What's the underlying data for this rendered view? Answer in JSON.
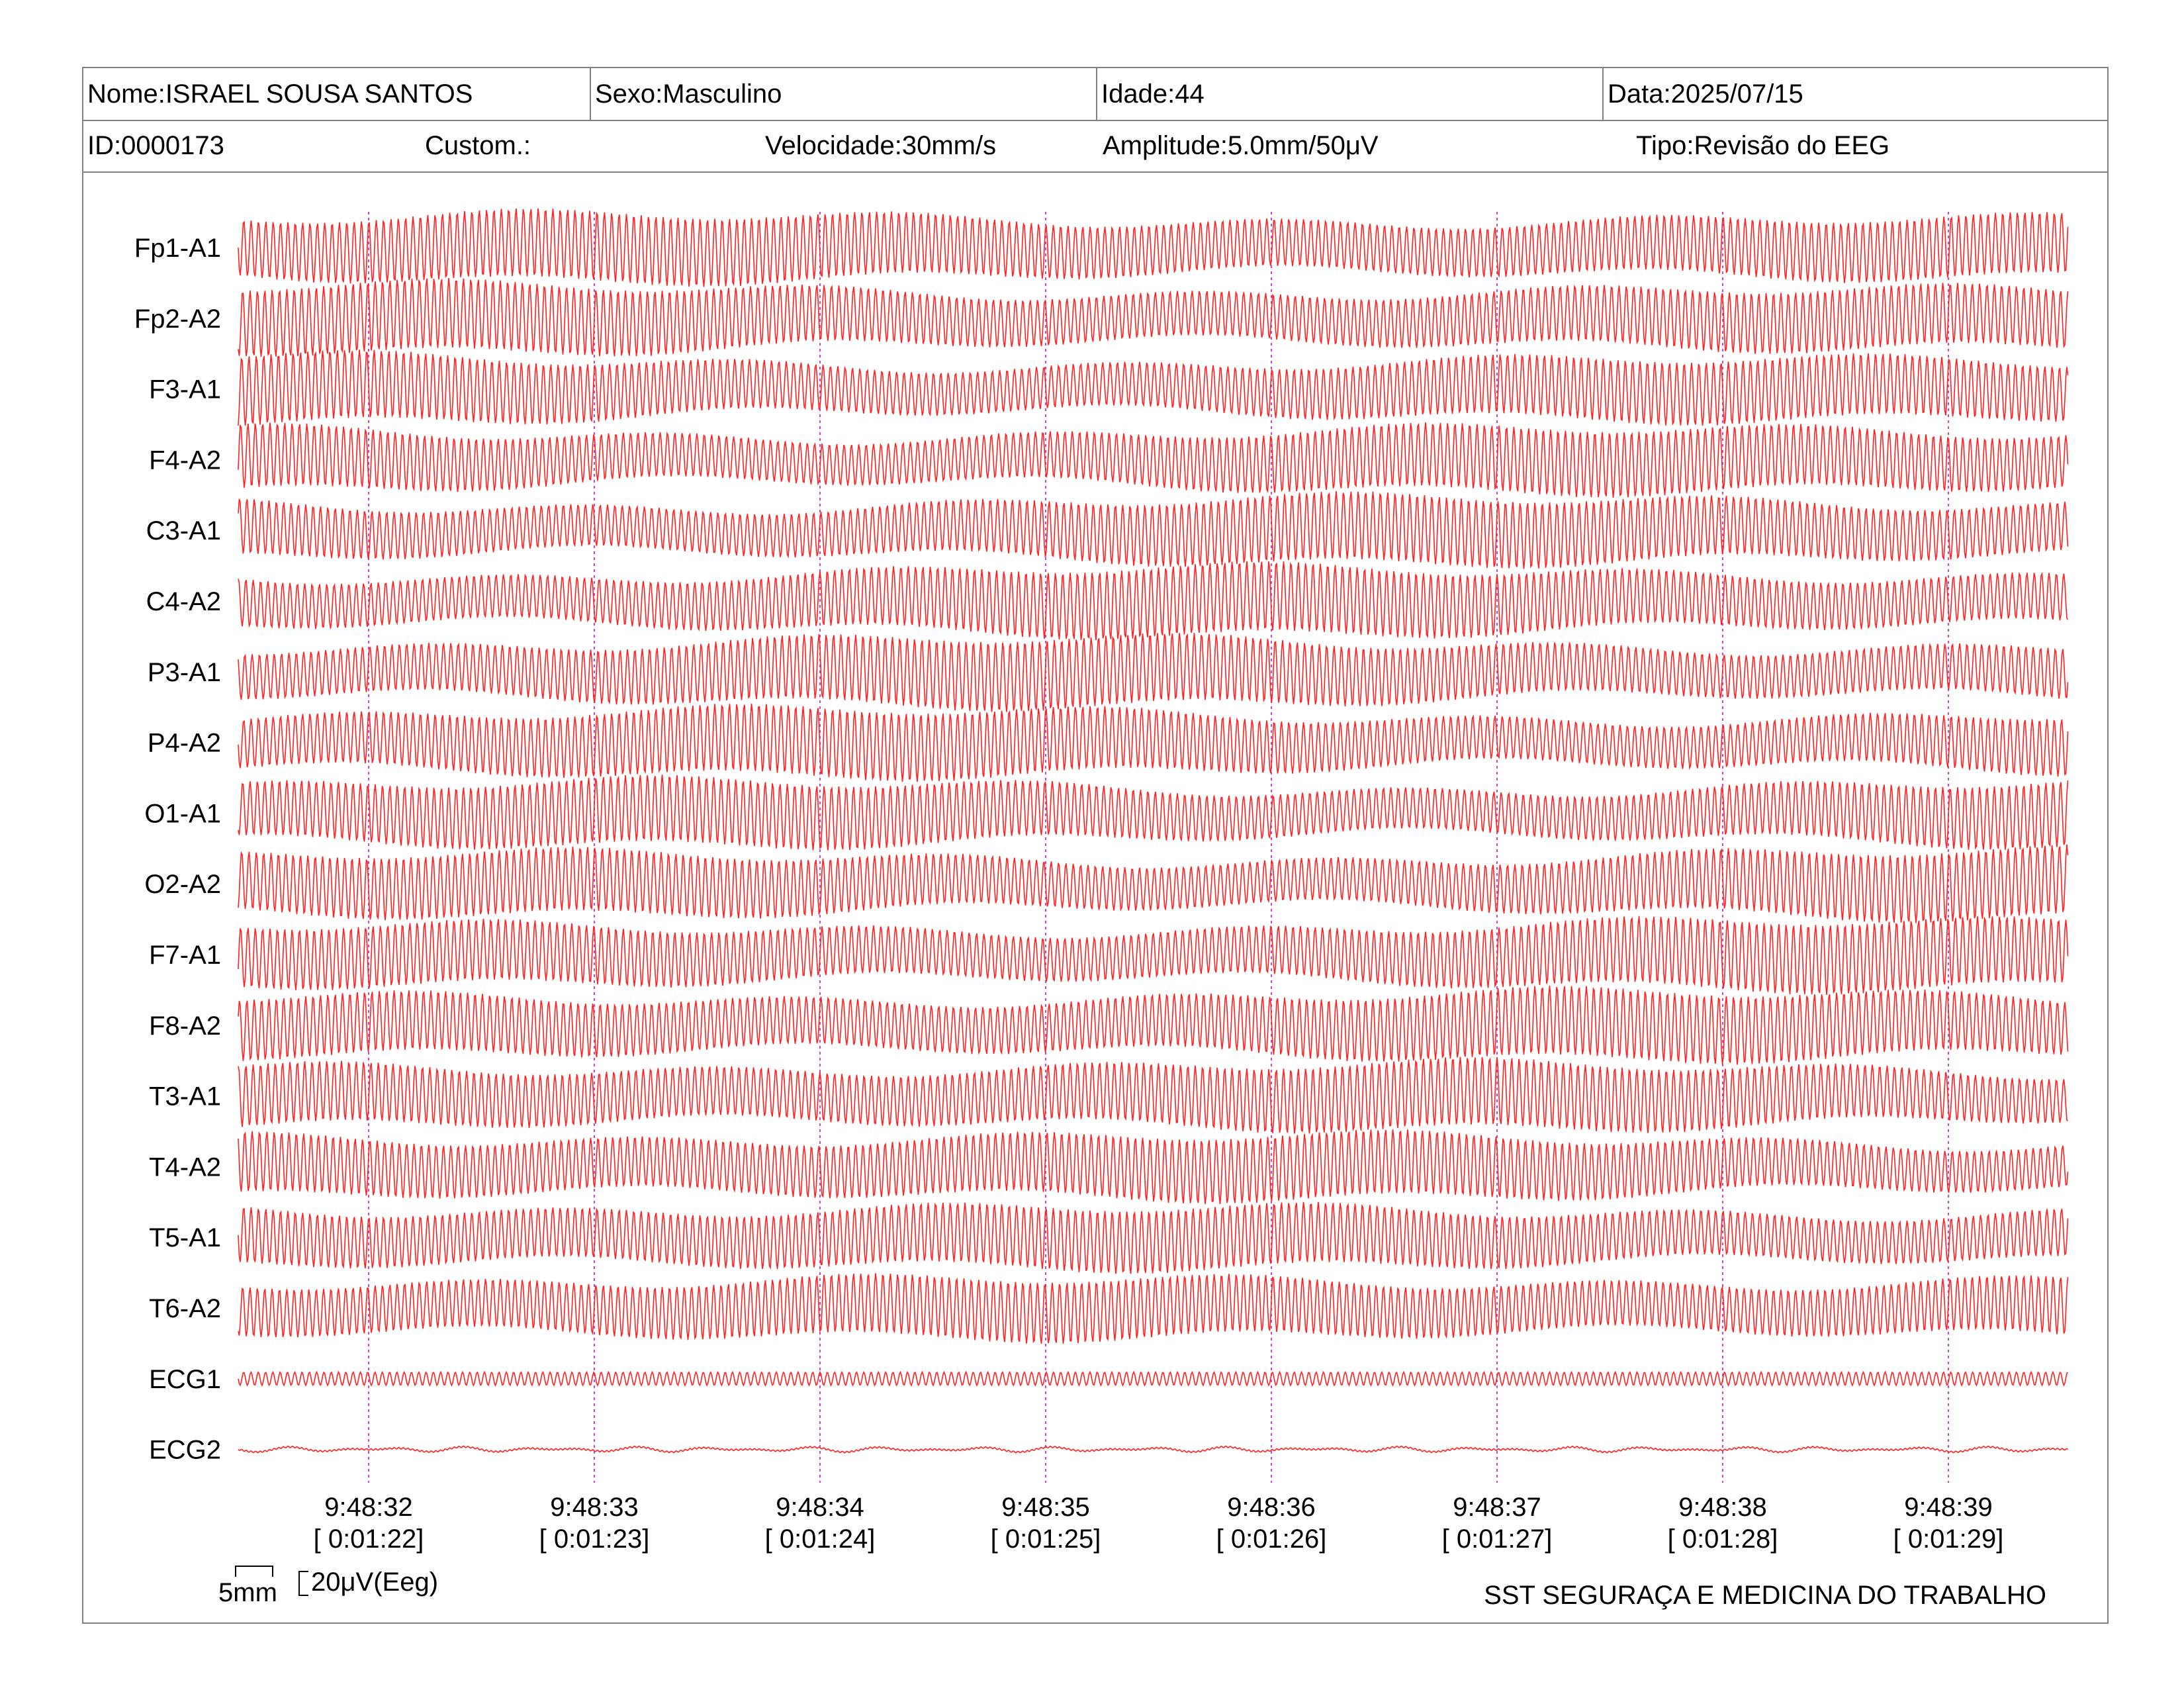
{
  "header": {
    "name": "Nome:ISRAEL SOUSA SANTOS",
    "sex": "Sexo:Masculino",
    "age": "Idade:44",
    "date": "Data:2025/07/15",
    "id": "ID:0000173",
    "custom": "Custom.:",
    "speed": "Velocidade:30mm/s",
    "amplitude": "Amplitude:5.0mm/50μV",
    "type": "Tipo:Revisão do EEG"
  },
  "scale": {
    "mm_label": "5mm",
    "uv_label": "20μV(Eeg)"
  },
  "footer": {
    "organization": "SST SEGURAÇA E MEDICINA DO TRABALHO"
  },
  "colors": {
    "trace": "#ff2020",
    "marker": "#cc44cc",
    "border": "#808080"
  },
  "chart_data": {
    "type": "line",
    "title": "",
    "channels": [
      "Fp1-A1",
      "Fp2-A2",
      "F3-A1",
      "F4-A2",
      "C3-A1",
      "C4-A2",
      "P3-A1",
      "P4-A2",
      "O1-A1",
      "O2-A2",
      "F7-A1",
      "F8-A2",
      "T3-A1",
      "T4-A2",
      "T5-A1",
      "T6-A2",
      "ECG1",
      "ECG2"
    ],
    "x_ticks": [
      {
        "time": "9:48:32",
        "elapsed": "[ 0:01:22]"
      },
      {
        "time": "9:48:33",
        "elapsed": "[ 0:01:23]"
      },
      {
        "time": "9:48:34",
        "elapsed": "[ 0:01:24]"
      },
      {
        "time": "9:48:35",
        "elapsed": "[ 0:01:25]"
      },
      {
        "time": "9:48:36",
        "elapsed": "[ 0:01:26]"
      },
      {
        "time": "9:48:37",
        "elapsed": "[ 0:01:27]"
      },
      {
        "time": "9:48:38",
        "elapsed": "[ 0:01:28]"
      },
      {
        "time": "9:48:39",
        "elapsed": "[ 0:01:29]"
      }
    ],
    "grid": false,
    "legend": "none"
  }
}
